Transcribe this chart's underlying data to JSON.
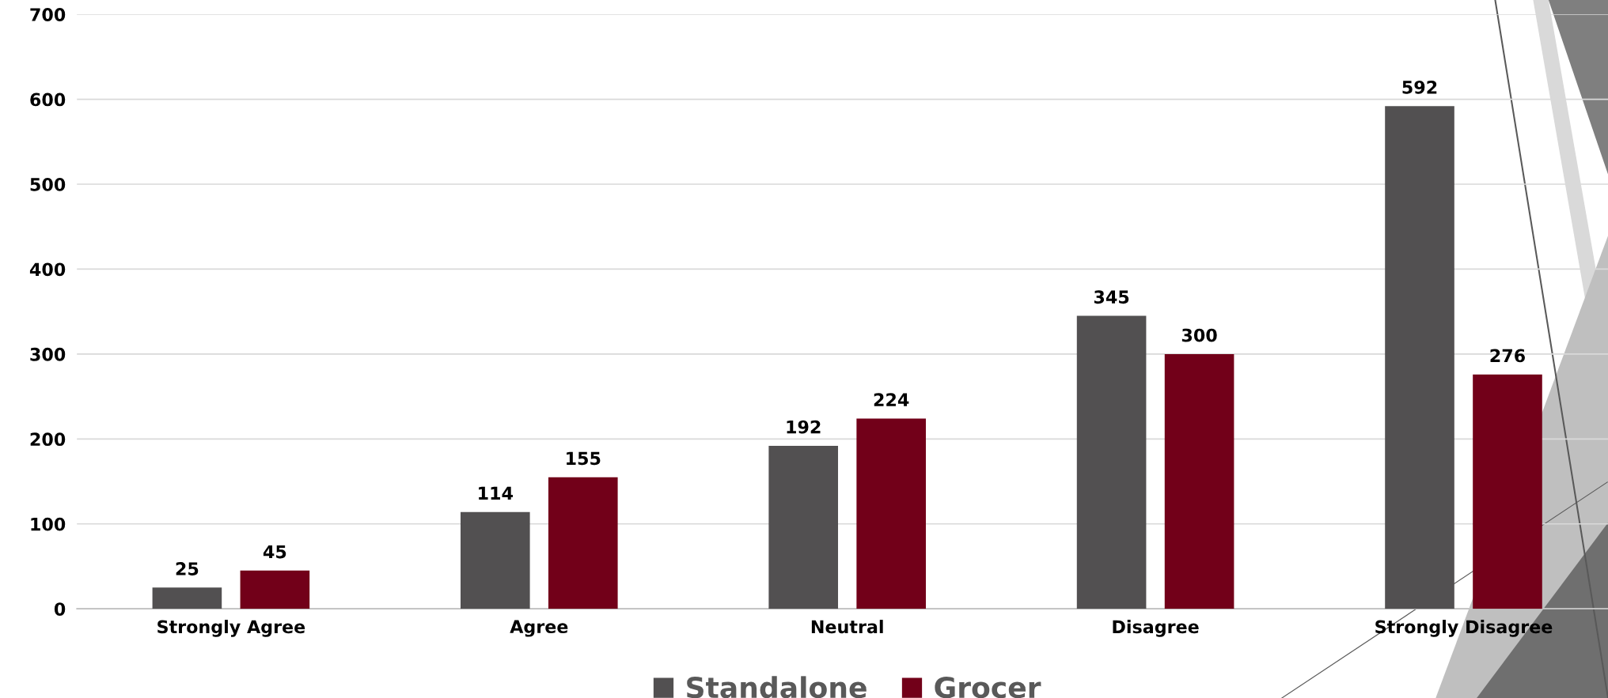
{
  "chart_data": {
    "type": "bar",
    "categories": [
      "Strongly Agree",
      "Agree",
      "Neutral",
      "Disagree",
      "Strongly Disagree"
    ],
    "series": [
      {
        "name": "Standalone",
        "color": "#525051",
        "values": [
          25,
          114,
          192,
          345,
          592
        ]
      },
      {
        "name": "Grocer",
        "color": "#720019",
        "values": [
          45,
          155,
          224,
          300,
          276
        ]
      }
    ],
    "ylim": [
      0,
      700
    ],
    "yticks": [
      0,
      100,
      200,
      300,
      400,
      500,
      600,
      700
    ],
    "grid": "y",
    "legend": "bottom",
    "data_labels": true
  }
}
